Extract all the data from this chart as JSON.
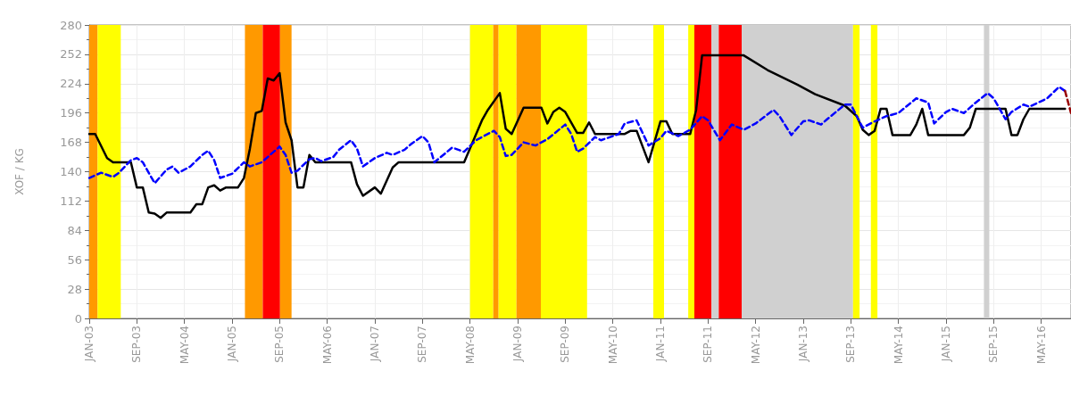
{
  "chart_data": {
    "type": "line",
    "ylabel": "XOF / KG",
    "xlim": [
      "2003-01",
      "2016-10"
    ],
    "ylim": [
      0,
      280
    ],
    "yticks": [
      0,
      28,
      56,
      84,
      112,
      140,
      168,
      196,
      224,
      252,
      280
    ],
    "xticks": [
      {
        "value": "2003-01",
        "label": "JAN-03"
      },
      {
        "value": "2003-09",
        "label": "SEP-03"
      },
      {
        "value": "2004-05",
        "label": "MAY-04"
      },
      {
        "value": "2005-01",
        "label": "JAN-05"
      },
      {
        "value": "2005-09",
        "label": "SEP-05"
      },
      {
        "value": "2006-05",
        "label": "MAY-06"
      },
      {
        "value": "2007-01",
        "label": "JAN-07"
      },
      {
        "value": "2007-09",
        "label": "SEP-07"
      },
      {
        "value": "2008-05",
        "label": "MAY-08"
      },
      {
        "value": "2009-01",
        "label": "JAN-09"
      },
      {
        "value": "2009-09",
        "label": "SEP-09"
      },
      {
        "value": "2010-05",
        "label": "MAY-10"
      },
      {
        "value": "2011-01",
        "label": "JAN-11"
      },
      {
        "value": "2011-09",
        "label": "SEP-11"
      },
      {
        "value": "2012-05",
        "label": "MAY-12"
      },
      {
        "value": "2013-01",
        "label": "JAN-13"
      },
      {
        "value": "2013-09",
        "label": "SEP-13"
      },
      {
        "value": "2014-05",
        "label": "MAY-14"
      },
      {
        "value": "2015-01",
        "label": "JAN-15"
      },
      {
        "value": "2015-09",
        "label": "SEP-15"
      },
      {
        "value": "2016-05",
        "label": "MAY-16"
      }
    ],
    "grid": true,
    "marker": "none",
    "bands": [
      {
        "axis": "x",
        "from": "2003-01",
        "to": "2003-02-13",
        "color": "#ff9900"
      },
      {
        "axis": "x",
        "from": "2003-02-13",
        "to": "2003-06-10",
        "color": "#ffff00"
      },
      {
        "axis": "x",
        "from": "2005-03-06",
        "to": "2005-06-06",
        "color": "#ff9900"
      },
      {
        "axis": "x",
        "from": "2005-06-06",
        "to": "2005-09-03",
        "color": "#ff0000"
      },
      {
        "axis": "x",
        "from": "2005-09-03",
        "to": "2005-11",
        "color": "#ff9900"
      },
      {
        "axis": "x",
        "from": "2008-05",
        "to": "2008-08-28",
        "color": "#ffff00"
      },
      {
        "axis": "x",
        "from": "2008-08-28",
        "to": "2008-09-25",
        "color": "#ff9900"
      },
      {
        "axis": "x",
        "from": "2008-09-25",
        "to": "2008-12-25",
        "color": "#ffff00"
      },
      {
        "axis": "x",
        "from": "2008-12-25",
        "to": "2009-04-28",
        "color": "#ff9900"
      },
      {
        "axis": "x",
        "from": "2009-04-28",
        "to": "2009-12-21",
        "color": "#ffff00"
      },
      {
        "axis": "x",
        "from": "2010-11-25",
        "to": "2011-01-19",
        "color": "#ffff00"
      },
      {
        "axis": "x",
        "from": "2011-05-21",
        "to": "2011-06-22",
        "color": "#ffff00"
      },
      {
        "axis": "x",
        "from": "2011-06-22",
        "to": "2011-09-18",
        "color": "#ff0000"
      },
      {
        "axis": "x",
        "from": "2011-09-18",
        "to": "2011-10-25",
        "color": "#d0d0d0"
      },
      {
        "axis": "x",
        "from": "2011-10-25",
        "to": "2012-02-21",
        "color": "#ff0000"
      },
      {
        "axis": "x",
        "from": "2012-02-21",
        "to": "2013-09-12",
        "color": "#d0d0d0"
      },
      {
        "axis": "x",
        "from": "2013-09-12",
        "to": "2013-10-15",
        "color": "#ffff00"
      },
      {
        "axis": "x",
        "from": "2013-12-12",
        "to": "2014-01-15",
        "color": "#ffff00"
      },
      {
        "axis": "x",
        "from": "2015-07-12",
        "to": "2015-08-09",
        "color": "#d0d0d0"
      }
    ],
    "series": [
      {
        "color": "#000000",
        "line_style": "solid",
        "x": [
          "2003-01",
          "2003-02",
          "2003-04",
          "2003-05",
          "2003-08",
          "2003-09",
          "2003-10",
          "2003-11",
          "2003-12",
          "2004-01",
          "2004-02",
          "2004-06",
          "2004-07",
          "2004-08",
          "2004-09",
          "2004-10",
          "2004-11",
          "2004-12",
          "2005-02",
          "2005-03",
          "2005-04",
          "2005-05",
          "2005-06",
          "2005-07",
          "2005-08",
          "2005-09",
          "2005-10",
          "2005-11",
          "2005-12",
          "2006-01",
          "2006-02",
          "2006-03",
          "2006-09",
          "2006-10",
          "2006-11",
          "2007-01",
          "2007-02",
          "2007-04",
          "2007-05",
          "2008-04",
          "2008-07",
          "2008-08",
          "2008-10",
          "2008-11",
          "2008-12",
          "2009-02",
          "2009-05",
          "2009-06",
          "2009-07",
          "2009-08",
          "2009-09",
          "2009-11",
          "2009-12",
          "2010-01",
          "2010-02",
          "2010-07",
          "2010-08",
          "2010-09",
          "2010-11",
          "2011-01",
          "2011-02",
          "2011-03",
          "2011-06",
          "2011-07",
          "2011-08",
          "2012-03",
          "2012-07",
          "2012-12",
          "2013-03",
          "2013-08",
          "2013-10",
          "2013-11",
          "2013-12",
          "2014-01",
          "2014-02",
          "2014-03",
          "2014-04",
          "2014-07",
          "2014-08",
          "2014-09",
          "2014-10",
          "2015-04",
          "2015-05",
          "2015-06",
          "2015-11",
          "2015-12",
          "2016-01",
          "2016-02",
          "2016-03",
          "2016-09"
        ],
        "values": [
          176,
          176,
          153,
          149,
          149,
          125,
          125,
          101,
          100,
          96,
          101,
          101,
          109,
          109,
          125,
          127,
          122,
          125,
          125,
          134,
          162,
          196,
          198,
          229,
          227,
          234,
          187,
          170,
          125,
          125,
          156,
          149,
          149,
          128,
          117,
          125,
          119,
          144,
          149,
          149,
          189,
          199,
          215,
          181,
          176,
          201,
          201,
          186,
          197,
          201,
          197,
          177,
          177,
          187,
          176,
          176,
          179,
          179,
          149,
          188,
          188,
          176,
          176,
          199,
          251,
          251,
          237,
          223,
          214,
          203,
          193,
          180,
          175,
          179,
          200,
          200,
          175,
          175,
          185,
          200,
          175,
          175,
          182,
          200,
          200,
          175,
          175,
          190,
          200,
          200
        ]
      },
      {
        "color": "#0000ff",
        "line_style": "dashed",
        "x": [
          "2003-01",
          "2003-03",
          "2003-05",
          "2003-06",
          "2003-08",
          "2003-09",
          "2003-10",
          "2003-12",
          "2004-02",
          "2004-03",
          "2004-04",
          "2004-06",
          "2004-08",
          "2004-09",
          "2004-10",
          "2004-11",
          "2005-01",
          "2005-03",
          "2005-04",
          "2005-06",
          "2005-08",
          "2005-09",
          "2005-10",
          "2005-11",
          "2005-12",
          "2006-02",
          "2006-03",
          "2006-04",
          "2006-06",
          "2006-07",
          "2006-09",
          "2006-10",
          "2006-11",
          "2007-01",
          "2007-03",
          "2007-04",
          "2007-06",
          "2007-07",
          "2007-09",
          "2007-10",
          "2007-11",
          "2008-02",
          "2008-04",
          "2008-06",
          "2008-09",
          "2008-10",
          "2008-11",
          "2008-12",
          "2009-02",
          "2009-04",
          "2009-06",
          "2009-09",
          "2009-10",
          "2009-11",
          "2009-12",
          "2010-02",
          "2010-03",
          "2010-06",
          "2010-07",
          "2010-09",
          "2010-11",
          "2011-01",
          "2011-02",
          "2011-04",
          "2011-06",
          "2011-08",
          "2011-09",
          "2011-11",
          "2012-01",
          "2012-03",
          "2012-05",
          "2012-08",
          "2012-09",
          "2012-11",
          "2013-01",
          "2013-02",
          "2013-04",
          "2013-05",
          "2013-08",
          "2013-09",
          "2013-11",
          "2014-01",
          "2014-03",
          "2014-05",
          "2014-08",
          "2014-10",
          "2014-11",
          "2015-01",
          "2015-02",
          "2015-04",
          "2015-06",
          "2015-08",
          "2015-09",
          "2015-11",
          "2015-12",
          "2016-02",
          "2016-03",
          "2016-06",
          "2016-08",
          "2016-09"
        ],
        "values": [
          134,
          139,
          135,
          139,
          151,
          153,
          149,
          129,
          142,
          145,
          139,
          145,
          156,
          160,
          151,
          134,
          138,
          149,
          145,
          149,
          159,
          164,
          156,
          139,
          141,
          152,
          153,
          150,
          154,
          161,
          170,
          162,
          145,
          153,
          158,
          156,
          161,
          166,
          174,
          168,
          149,
          163,
          159,
          170,
          179,
          173,
          155,
          156,
          168,
          165,
          171,
          185,
          176,
          159,
          162,
          173,
          170,
          176,
          186,
          189,
          165,
          172,
          179,
          174,
          180,
          193,
          189,
          170,
          185,
          180,
          186,
          199,
          193,
          175,
          188,
          189,
          185,
          190,
          204,
          204,
          182,
          188,
          193,
          196,
          210,
          206,
          186,
          197,
          200,
          196,
          206,
          215,
          210,
          190,
          197,
          204,
          202,
          210,
          221,
          217
        ]
      },
      {
        "color": "#990000",
        "line_style": "dashed",
        "x": [
          "2016-09",
          "2016-10"
        ],
        "values": [
          217,
          196
        ]
      }
    ]
  }
}
